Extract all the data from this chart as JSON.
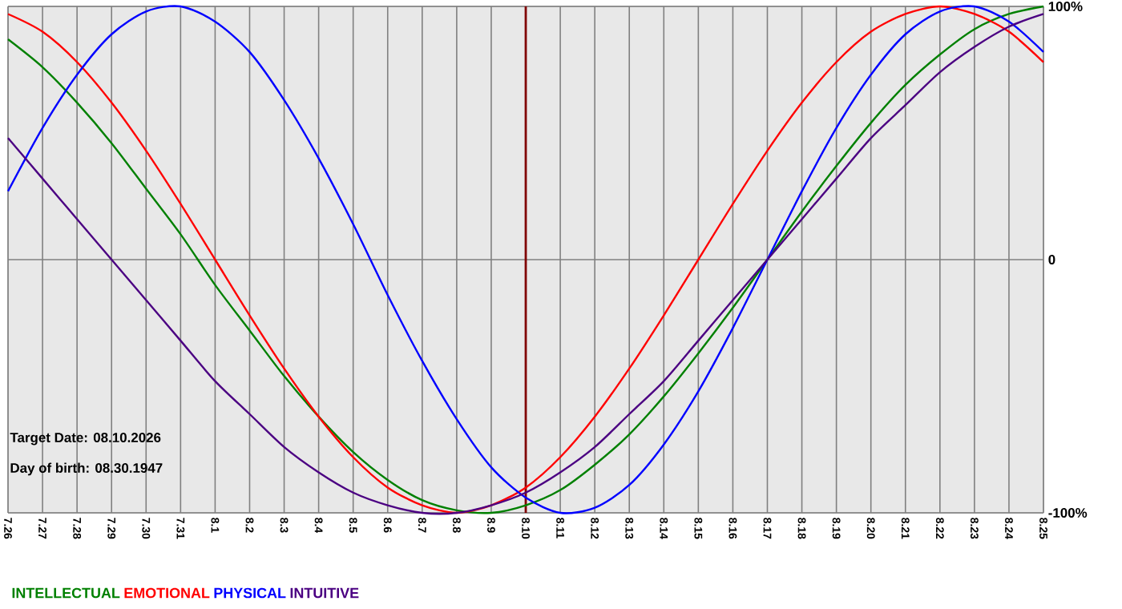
{
  "chart_data": {
    "type": "line",
    "categories": [
      "7.26",
      "7.27",
      "7.28",
      "7.29",
      "7.30",
      "7.31",
      "8.1",
      "8.2",
      "8.3",
      "8.4",
      "8.5",
      "8.6",
      "8.7",
      "8.8",
      "8.9",
      "8.10",
      "8.11",
      "8.12",
      "8.13",
      "8.14",
      "8.15",
      "8.16",
      "8.17",
      "8.18",
      "8.19",
      "8.20",
      "8.21",
      "8.22",
      "8.23",
      "8.24",
      "8.25"
    ],
    "series": [
      {
        "name": "INTELLECTUAL",
        "color": "#008000",
        "values": [
          87,
          76,
          62,
          46,
          28,
          10,
          -10,
          -28,
          -46,
          -62,
          -76,
          -87,
          -95,
          -99,
          -100,
          -97,
          -91,
          -81,
          -69,
          -54,
          -37,
          -19,
          0,
          19,
          37,
          54,
          69,
          81,
          91,
          97,
          100
        ]
      },
      {
        "name": "EMOTIONAL",
        "color": "#ff0000",
        "values": [
          97,
          90,
          78,
          62,
          43,
          22,
          0,
          -22,
          -43,
          -62,
          -78,
          -90,
          -97,
          -100,
          -97,
          -90,
          -78,
          -62,
          -43,
          -22,
          0,
          22,
          43,
          62,
          78,
          90,
          97,
          100,
          97,
          90,
          78
        ]
      },
      {
        "name": "PHYSICAL",
        "color": "#0000ff",
        "values": [
          27,
          52,
          73,
          89,
          98,
          100,
          94,
          82,
          63,
          40,
          14,
          -14,
          -40,
          -63,
          -82,
          -94,
          -100,
          -98,
          -89,
          -73,
          -52,
          -27,
          0,
          27,
          52,
          73,
          89,
          98,
          100,
          94,
          82
        ]
      },
      {
        "name": "INTUITIVE",
        "color": "#4b0082",
        "values": [
          48,
          32,
          16,
          0,
          -16,
          -32,
          -48,
          -61,
          -74,
          -84,
          -92,
          -97,
          -100,
          -100,
          -97,
          -92,
          -84,
          -74,
          -61,
          -48,
          -32,
          -16,
          0,
          16,
          32,
          48,
          61,
          74,
          84,
          92,
          97
        ]
      }
    ],
    "ylim": [
      -100,
      100
    ],
    "yticks": [
      {
        "value": -100,
        "label": "-100%"
      },
      0,
      {
        "value": 100,
        "label": "100%"
      }
    ],
    "grid": true,
    "legend": "bottom",
    "line_style": "solid",
    "ref_lines": [
      {
        "axis": "x",
        "value": "8.10",
        "color": "#800000"
      }
    ],
    "annotations": [
      "Target Date: 08.10.2026",
      "Day of birth: 08.30.1947"
    ]
  }
}
